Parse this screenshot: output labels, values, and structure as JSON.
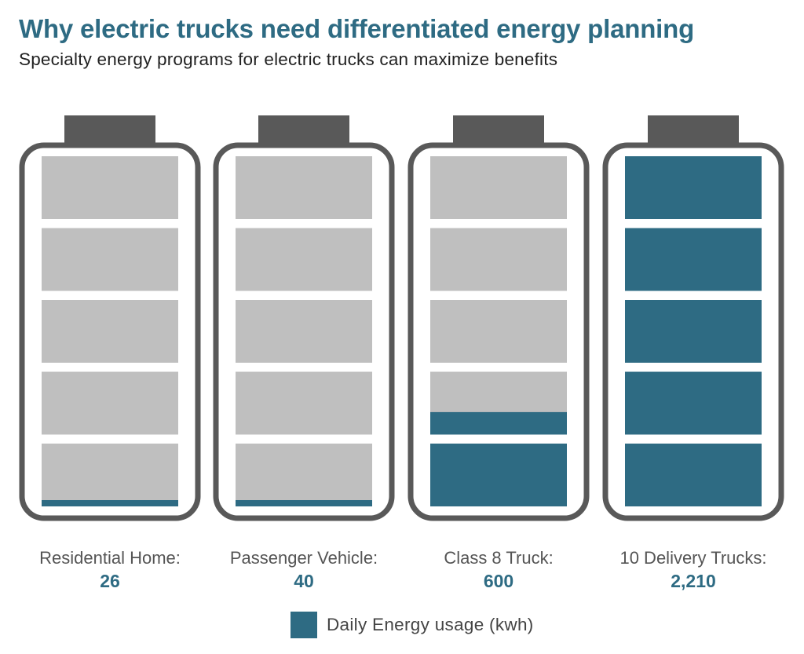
{
  "title": "Why electric trucks need differentiated energy planning",
  "subtitle": "Specialty energy programs for electric trucks can maximize benefits",
  "chart_data": {
    "type": "bar",
    "categories": [
      "Residential Home:",
      "Passenger Vehicle:",
      "Class 8 Truck:",
      "10 Delivery Trucks:"
    ],
    "values": [
      26,
      40,
      600,
      2210
    ],
    "value_labels": [
      "26",
      "40",
      "600",
      "2,210"
    ],
    "ylim": [
      0,
      2210
    ],
    "grid": false,
    "legend": {
      "position": "bottom-center",
      "label": "Daily Energy usage (kwh)"
    },
    "series": [
      {
        "name": "Daily Energy usage (kwh)",
        "values": [
          26,
          40,
          600,
          2210
        ],
        "color": "#2e6b83"
      }
    ]
  },
  "colors": {
    "accent": "#2e6b83",
    "empty_cell": "#bfbfbf",
    "battery_outline": "#595959"
  }
}
